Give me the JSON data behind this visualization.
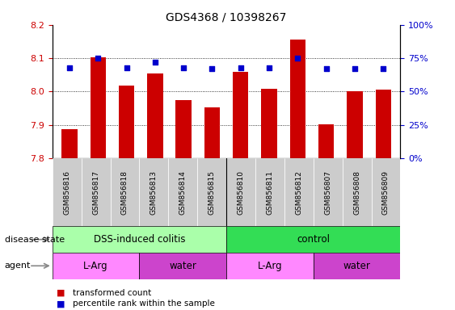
{
  "title": "GDS4368 / 10398267",
  "samples": [
    "GSM856816",
    "GSM856817",
    "GSM856818",
    "GSM856813",
    "GSM856814",
    "GSM856815",
    "GSM856810",
    "GSM856811",
    "GSM856812",
    "GSM856807",
    "GSM856808",
    "GSM856809"
  ],
  "red_values": [
    7.887,
    8.103,
    8.018,
    8.055,
    7.975,
    7.952,
    8.06,
    8.007,
    8.155,
    7.902,
    8.0,
    8.005
  ],
  "blue_values": [
    68,
    75,
    68,
    72,
    68,
    67,
    68,
    68,
    75,
    67,
    67,
    67
  ],
  "ylim_left": [
    7.8,
    8.2
  ],
  "ylim_right": [
    0,
    100
  ],
  "yticks_left": [
    7.8,
    7.9,
    8.0,
    8.1,
    8.2
  ],
  "yticks_right": [
    0,
    25,
    50,
    75,
    100
  ],
  "ytick_labels_right": [
    "0%",
    "25%",
    "50%",
    "75%",
    "100%"
  ],
  "disease_state_groups": [
    {
      "label": "DSS-induced colitis",
      "start": 0,
      "end": 6,
      "color": "#aaffaa"
    },
    {
      "label": "control",
      "start": 6,
      "end": 12,
      "color": "#33dd55"
    }
  ],
  "agent_groups": [
    {
      "label": "L-Arg",
      "start": 0,
      "end": 3,
      "color": "#ff88ff"
    },
    {
      "label": "water",
      "start": 3,
      "end": 6,
      "color": "#cc44cc"
    },
    {
      "label": "L-Arg",
      "start": 6,
      "end": 9,
      "color": "#ff88ff"
    },
    {
      "label": "water",
      "start": 9,
      "end": 12,
      "color": "#cc44cc"
    }
  ],
  "bar_color": "#cc0000",
  "dot_color": "#0000cc",
  "bar_width": 0.55,
  "axis_left_color": "#cc0000",
  "axis_right_color": "#0000cc",
  "label_row1": "disease state",
  "label_row2": "agent",
  "legend_items": [
    {
      "label": "transformed count",
      "color": "#cc0000"
    },
    {
      "label": "percentile rank within the sample",
      "color": "#0000cc"
    }
  ],
  "xtick_bg_color": "#cccccc",
  "sep_line_color": "#888888"
}
